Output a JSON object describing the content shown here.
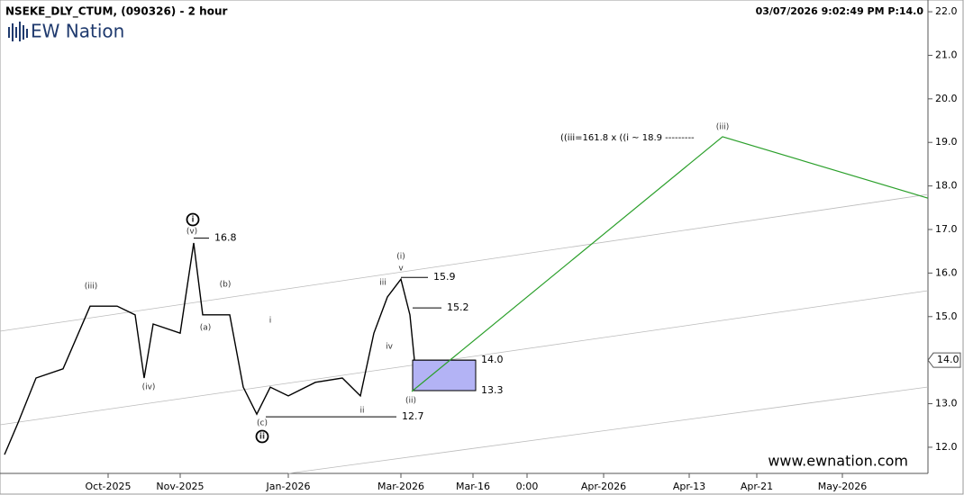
{
  "chart_data": {
    "type": "line",
    "title": "NSEKE_DLY_CTUM, (090326) - 2 hour",
    "timestamp": "03/07/2026 9:02:49 PM  P:14.0",
    "logo": "EW Nation",
    "watermark": "www.ewnation.com",
    "projection_note": "((iii=161.8 x ((i ~ 18.9 ---------",
    "xlim": [
      0,
      206
    ],
    "xticks": [
      {
        "value": 24,
        "label": "Oct-2025"
      },
      {
        "value": 40,
        "label": "Nov-2025"
      },
      {
        "value": 64,
        "label": "Jan-2026"
      },
      {
        "value": 89,
        "label": "Mar-2026"
      },
      {
        "value": 105,
        "label": "Mar-16"
      },
      {
        "value": 117,
        "label": "0:00"
      },
      {
        "value": 134,
        "label": "Apr-2026"
      },
      {
        "value": 153,
        "label": "Apr-13"
      },
      {
        "value": 168,
        "label": "Apr-21"
      },
      {
        "value": 187,
        "label": "May-2026"
      }
    ],
    "ylim": [
      11.11,
      22.27
    ],
    "yticks": [
      {
        "value": 12,
        "label": "12.0"
      },
      {
        "value": 13,
        "label": "13.0"
      },
      {
        "value": 14,
        "label": "14.0"
      },
      {
        "value": 15,
        "label": "15.0"
      },
      {
        "value": 16,
        "label": "16.0"
      },
      {
        "value": 17,
        "label": "17.0"
      },
      {
        "value": 18,
        "label": "18.0"
      },
      {
        "value": 19,
        "label": "19.0"
      },
      {
        "value": 20,
        "label": "20.0"
      },
      {
        "value": 21,
        "label": "21.0"
      },
      {
        "value": 22,
        "label": "22.0"
      }
    ],
    "last_price": {
      "value": 14,
      "label": "14.0"
    },
    "series": [
      {
        "name": "Price",
        "color": "#000000",
        "x": [
          1,
          4,
          8,
          14,
          20,
          26,
          30,
          32,
          34,
          40,
          43,
          45,
          51,
          54,
          57,
          60,
          64,
          70,
          76,
          80,
          83,
          86,
          89,
          91,
          92
        ],
        "values": [
          11.83,
          12.56,
          13.59,
          13.8,
          15.24,
          15.24,
          15.04,
          13.59,
          14.83,
          14.62,
          16.69,
          15.04,
          15.04,
          13.38,
          12.76,
          13.38,
          13.18,
          13.49,
          13.59,
          13.18,
          14.62,
          15.45,
          15.86,
          15.04,
          14.0
        ]
      },
      {
        "name": "Projection",
        "color": "#2ca02c",
        "x": [
          91.4,
          160.4,
          206
        ],
        "values": [
          13.28,
          19.13,
          17.72
        ]
      }
    ],
    "levels": [
      16.8,
      15.9,
      15.2,
      {
        "value": 14.0,
        "label": "14.0"
      },
      13.3,
      12.7
    ],
    "zone_color": "#b3b3f5",
    "wave_labels": [
      {
        "text": "(iii)"
      },
      {
        "text": "(iv)"
      },
      {
        "text": "(v)"
      },
      {
        "text": "i",
        "circled": true
      },
      {
        "text": "(a)"
      },
      {
        "text": "(b)"
      },
      {
        "text": "i"
      },
      {
        "text": "(c)"
      },
      {
        "text": "ii",
        "circled": true
      },
      {
        "text": "ii"
      },
      {
        "text": "iii"
      },
      {
        "text": "iv"
      },
      {
        "text": "(i)"
      },
      {
        "text": "v"
      },
      {
        "text": "(ii)"
      },
      {
        "text": "(iii)"
      }
    ]
  }
}
